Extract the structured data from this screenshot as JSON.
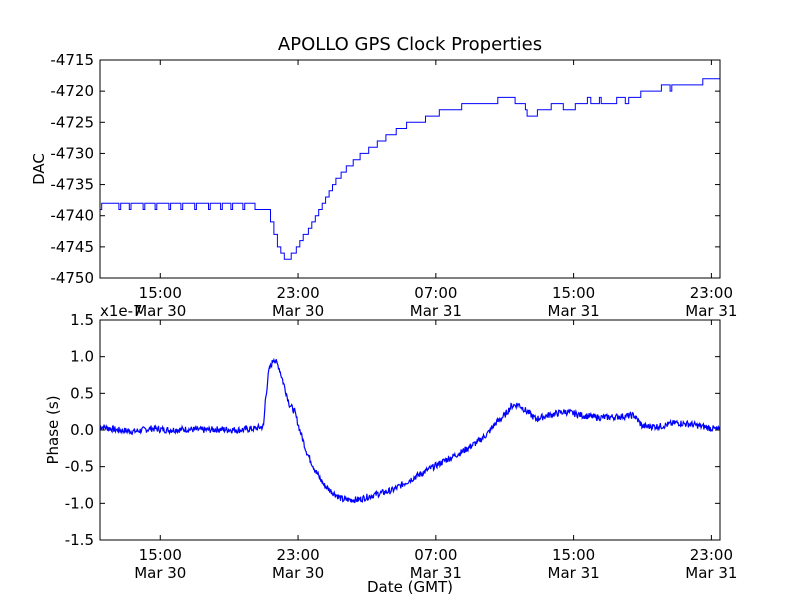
{
  "chart_data": [
    {
      "type": "line",
      "title": "APOLLO GPS Clock Properties",
      "ylabel": "DAC",
      "xlabel": "",
      "ylim": [
        -4750,
        -4715
      ],
      "yticks": [
        "-4715",
        "-4720",
        "-4725",
        "-4730",
        "-4735",
        "-4740",
        "-4745",
        "-4750"
      ],
      "xticks": [
        {
          "time": "15:00",
          "date": "Mar 30"
        },
        {
          "time": "23:00",
          "date": "Mar 30"
        },
        {
          "time": "07:00",
          "date": "Mar 31"
        },
        {
          "time": "15:00",
          "date": "Mar 31"
        },
        {
          "time": "23:00",
          "date": "Mar 31"
        }
      ],
      "x_hours_range": [
        11.5,
        47.5
      ],
      "color": "#0000ff",
      "series": [
        {
          "points": [
            [
              11.5,
              -4739
            ],
            [
              11.6,
              -4738
            ],
            [
              12.5,
              -4738
            ],
            [
              12.6,
              -4739
            ],
            [
              12.7,
              -4738
            ],
            [
              13.2,
              -4739
            ],
            [
              13.3,
              -4738
            ],
            [
              14.0,
              -4739
            ],
            [
              14.1,
              -4738
            ],
            [
              14.7,
              -4739
            ],
            [
              14.8,
              -4738
            ],
            [
              15.5,
              -4739
            ],
            [
              15.6,
              -4738
            ],
            [
              16.2,
              -4739
            ],
            [
              16.3,
              -4738
            ],
            [
              17.0,
              -4739
            ],
            [
              17.1,
              -4738
            ],
            [
              17.8,
              -4739
            ],
            [
              17.9,
              -4738
            ],
            [
              18.5,
              -4739
            ],
            [
              18.6,
              -4738
            ],
            [
              19.1,
              -4739
            ],
            [
              19.2,
              -4738
            ],
            [
              19.8,
              -4739
            ],
            [
              19.9,
              -4738
            ],
            [
              20.5,
              -4739
            ],
            [
              21.2,
              -4739
            ],
            [
              21.4,
              -4741
            ],
            [
              21.6,
              -4743
            ],
            [
              21.8,
              -4745
            ],
            [
              22.0,
              -4746
            ],
            [
              22.2,
              -4747
            ],
            [
              22.5,
              -4747
            ],
            [
              22.6,
              -4746
            ],
            [
              22.9,
              -4745
            ],
            [
              23.1,
              -4744
            ],
            [
              23.3,
              -4743
            ],
            [
              23.6,
              -4742
            ],
            [
              23.8,
              -4741
            ],
            [
              24.0,
              -4740
            ],
            [
              24.2,
              -4739
            ],
            [
              24.4,
              -4738
            ],
            [
              24.6,
              -4737
            ],
            [
              24.8,
              -4736
            ],
            [
              25.0,
              -4735
            ],
            [
              25.2,
              -4734
            ],
            [
              25.5,
              -4733
            ],
            [
              25.8,
              -4732
            ],
            [
              26.2,
              -4731
            ],
            [
              26.6,
              -4730
            ],
            [
              27.1,
              -4729
            ],
            [
              27.6,
              -4728
            ],
            [
              28.1,
              -4727
            ],
            [
              28.7,
              -4726
            ],
            [
              29.3,
              -4725
            ],
            [
              30.4,
              -4724
            ],
            [
              31.2,
              -4723
            ],
            [
              32.3,
              -4723
            ],
            [
              32.5,
              -4722
            ],
            [
              34.5,
              -4722
            ],
            [
              34.6,
              -4721
            ],
            [
              35.5,
              -4721
            ],
            [
              35.6,
              -4722
            ],
            [
              36.1,
              -4722
            ],
            [
              36.2,
              -4723
            ],
            [
              36.3,
              -4724
            ],
            [
              36.8,
              -4724
            ],
            [
              36.9,
              -4723
            ],
            [
              37.6,
              -4723
            ],
            [
              37.7,
              -4722
            ],
            [
              38.3,
              -4722
            ],
            [
              38.4,
              -4723
            ],
            [
              39.0,
              -4723
            ],
            [
              39.1,
              -4722
            ],
            [
              39.7,
              -4722
            ],
            [
              39.8,
              -4721
            ],
            [
              40.0,
              -4722
            ],
            [
              40.5,
              -4721
            ],
            [
              40.6,
              -4722
            ],
            [
              41.4,
              -4722
            ],
            [
              41.5,
              -4721
            ],
            [
              42.0,
              -4722
            ],
            [
              42.2,
              -4721
            ],
            [
              42.8,
              -4721
            ],
            [
              42.9,
              -4720
            ],
            [
              44.0,
              -4720
            ],
            [
              44.1,
              -4719
            ],
            [
              44.6,
              -4720
            ],
            [
              44.7,
              -4719
            ],
            [
              46.4,
              -4719
            ],
            [
              46.5,
              -4718
            ],
            [
              47.5,
              -4718
            ]
          ]
        }
      ]
    },
    {
      "type": "line",
      "title": "",
      "ylabel": "Phase (s)",
      "xlabel": "Date (GMT)",
      "scale_label": "x1e-7",
      "ylim": [
        -1.5,
        1.5
      ],
      "yticks": [
        "1.5",
        "1.0",
        "0.5",
        "0.0",
        "-0.5",
        "-1.0",
        "-1.5"
      ],
      "xticks": [
        {
          "time": "15:00",
          "date": "Mar 30"
        },
        {
          "time": "23:00",
          "date": "Mar 30"
        },
        {
          "time": "07:00",
          "date": "Mar 31"
        },
        {
          "time": "15:00",
          "date": "Mar 31"
        },
        {
          "time": "23:00",
          "date": "Mar 31"
        }
      ],
      "x_hours_range": [
        11.5,
        47.5
      ],
      "color": "#0000ff",
      "series": [
        {
          "points": [
            [
              11.5,
              0.05
            ],
            [
              12.5,
              0.0
            ],
            [
              13.5,
              -0.02
            ],
            [
              14.5,
              0.02
            ],
            [
              15.5,
              0.0
            ],
            [
              16.5,
              0.01
            ],
            [
              17.5,
              0.0
            ],
            [
              18.5,
              0.01
            ],
            [
              19.5,
              0.0
            ],
            [
              20.5,
              0.02
            ],
            [
              21.0,
              0.05
            ],
            [
              21.1,
              0.4
            ],
            [
              21.3,
              0.8
            ],
            [
              21.6,
              0.98
            ],
            [
              21.9,
              0.85
            ],
            [
              22.2,
              0.6
            ],
            [
              22.5,
              0.35
            ],
            [
              22.8,
              0.25
            ],
            [
              23.1,
              0.0
            ],
            [
              23.5,
              -0.3
            ],
            [
              24.0,
              -0.55
            ],
            [
              24.5,
              -0.75
            ],
            [
              25.0,
              -0.85
            ],
            [
              25.6,
              -0.95
            ],
            [
              26.5,
              -0.95
            ],
            [
              27.5,
              -0.88
            ],
            [
              28.5,
              -0.82
            ],
            [
              29.5,
              -0.68
            ],
            [
              30.5,
              -0.55
            ],
            [
              31.5,
              -0.42
            ],
            [
              32.5,
              -0.3
            ],
            [
              33.5,
              -0.15
            ],
            [
              34.0,
              -0.05
            ],
            [
              34.5,
              0.1
            ],
            [
              35.0,
              0.2
            ],
            [
              35.4,
              0.33
            ],
            [
              35.8,
              0.35
            ],
            [
              36.3,
              0.25
            ],
            [
              36.8,
              0.15
            ],
            [
              37.5,
              0.2
            ],
            [
              38.5,
              0.25
            ],
            [
              39.5,
              0.2
            ],
            [
              40.5,
              0.17
            ],
            [
              41.5,
              0.18
            ],
            [
              42.5,
              0.2
            ],
            [
              43.0,
              0.05
            ],
            [
              44.0,
              0.05
            ],
            [
              45.0,
              0.1
            ],
            [
              46.0,
              0.07
            ],
            [
              47.5,
              0.0
            ]
          ]
        }
      ]
    }
  ]
}
